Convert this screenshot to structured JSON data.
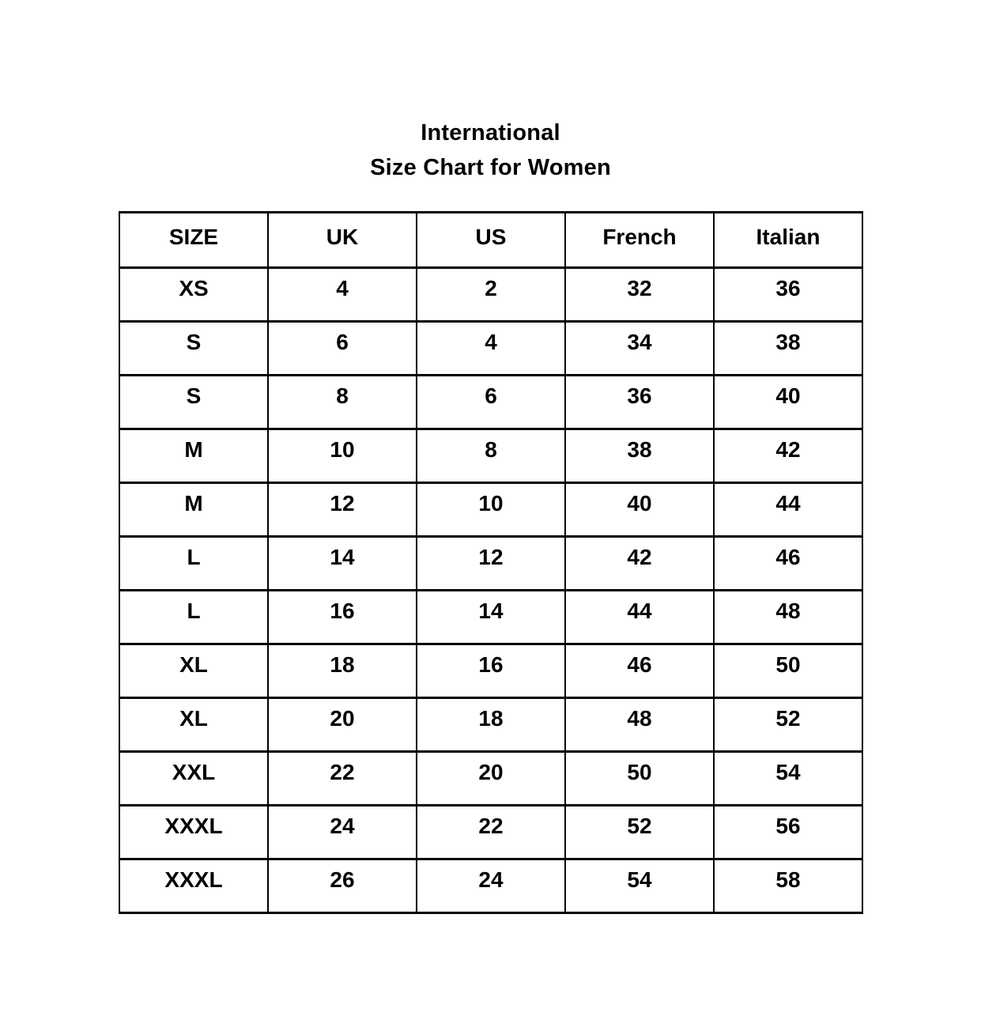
{
  "page": {
    "background_color": "#ffffff",
    "text_color": "#000000",
    "border_color": "#000000"
  },
  "title": {
    "line1": "International",
    "line2": "Size Chart for Women"
  },
  "chart_data": {
    "type": "table",
    "title": "International Size Chart for Women",
    "columns": [
      "SIZE",
      "UK",
      "US",
      "French",
      "Italian"
    ],
    "rows": [
      [
        "XS",
        "4",
        "2",
        "32",
        "36"
      ],
      [
        "S",
        "6",
        "4",
        "34",
        "38"
      ],
      [
        "S",
        "8",
        "6",
        "36",
        "40"
      ],
      [
        "M",
        "10",
        "8",
        "38",
        "42"
      ],
      [
        "M",
        "12",
        "10",
        "40",
        "44"
      ],
      [
        "L",
        "14",
        "12",
        "42",
        "46"
      ],
      [
        "L",
        "16",
        "14",
        "44",
        "48"
      ],
      [
        "XL",
        "18",
        "16",
        "46",
        "50"
      ],
      [
        "XL",
        "20",
        "18",
        "48",
        "52"
      ],
      [
        "XXL",
        "22",
        "20",
        "50",
        "54"
      ],
      [
        "XXXL",
        "24",
        "22",
        "52",
        "56"
      ],
      [
        "XXXL",
        "26",
        "24",
        "54",
        "58"
      ]
    ],
    "layout": {
      "grid": "full-borders",
      "header_row": true,
      "text_alignment": "center"
    }
  }
}
